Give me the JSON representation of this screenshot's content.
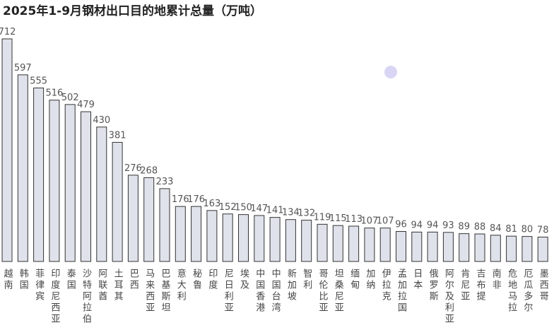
{
  "chart_data": {
    "type": "bar",
    "title": "2025年1-9月钢材出口目的地累计总量（万吨）",
    "categories": [
      "越南",
      "韩国",
      "菲律宾",
      "印度尼西亚",
      "泰国",
      "沙特阿拉伯",
      "阿联酋",
      "土耳其",
      "巴西",
      "马来西亚",
      "巴基斯坦",
      "意大利",
      "秘鲁",
      "印度",
      "尼日利亚",
      "埃及",
      "中国香港",
      "中国台湾",
      "新加坡",
      "智利",
      "哥伦比亚",
      "坦桑尼亚",
      "缅甸",
      "加纳",
      "伊拉克",
      "孟加拉国",
      "日本",
      "俄罗斯",
      "阿尔及利亚",
      "肯尼亚",
      "吉布提",
      "南非",
      "危地马拉",
      "厄瓜多尔",
      "墨西哥"
    ],
    "values": [
      712,
      597,
      555,
      516,
      502,
      479,
      430,
      381,
      276,
      268,
      233,
      176,
      176,
      163,
      152,
      150,
      147,
      141,
      134,
      132,
      119,
      115,
      113,
      107,
      107,
      96,
      94,
      94,
      93,
      89,
      88,
      84,
      81,
      80,
      78
    ],
    "color": "#dfe2ea"
  }
}
